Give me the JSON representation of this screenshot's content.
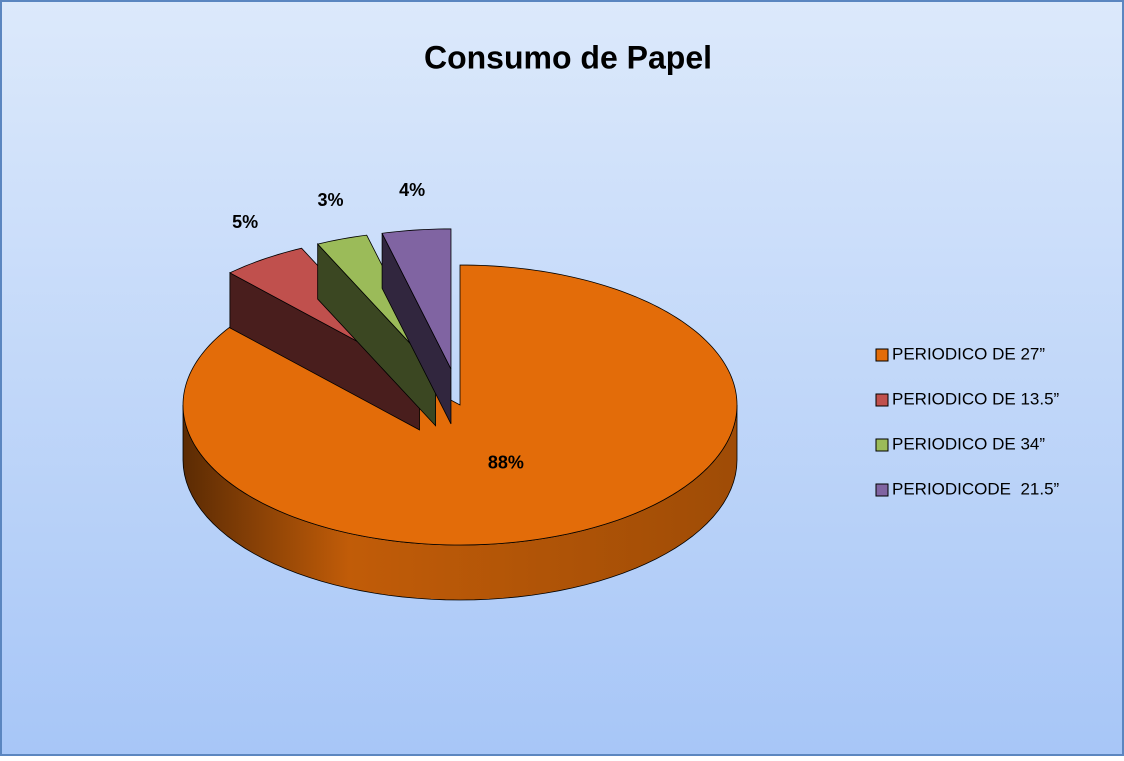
{
  "chart_data": {
    "type": "pie",
    "title": "Consumo de Papel",
    "categories": [
      "PERIODICO DE 27”",
      "PERIODICO DE 13.5”",
      "PERIODICO DE 34”",
      "PERIODICODE  21.5”"
    ],
    "values": [
      88,
      5,
      3,
      4
    ],
    "value_labels": [
      "88%",
      "5%",
      "3%",
      "4%"
    ],
    "colors": [
      "#e36c09",
      "#c0504d",
      "#9bbb59",
      "#8064a2"
    ],
    "legend": "right"
  }
}
